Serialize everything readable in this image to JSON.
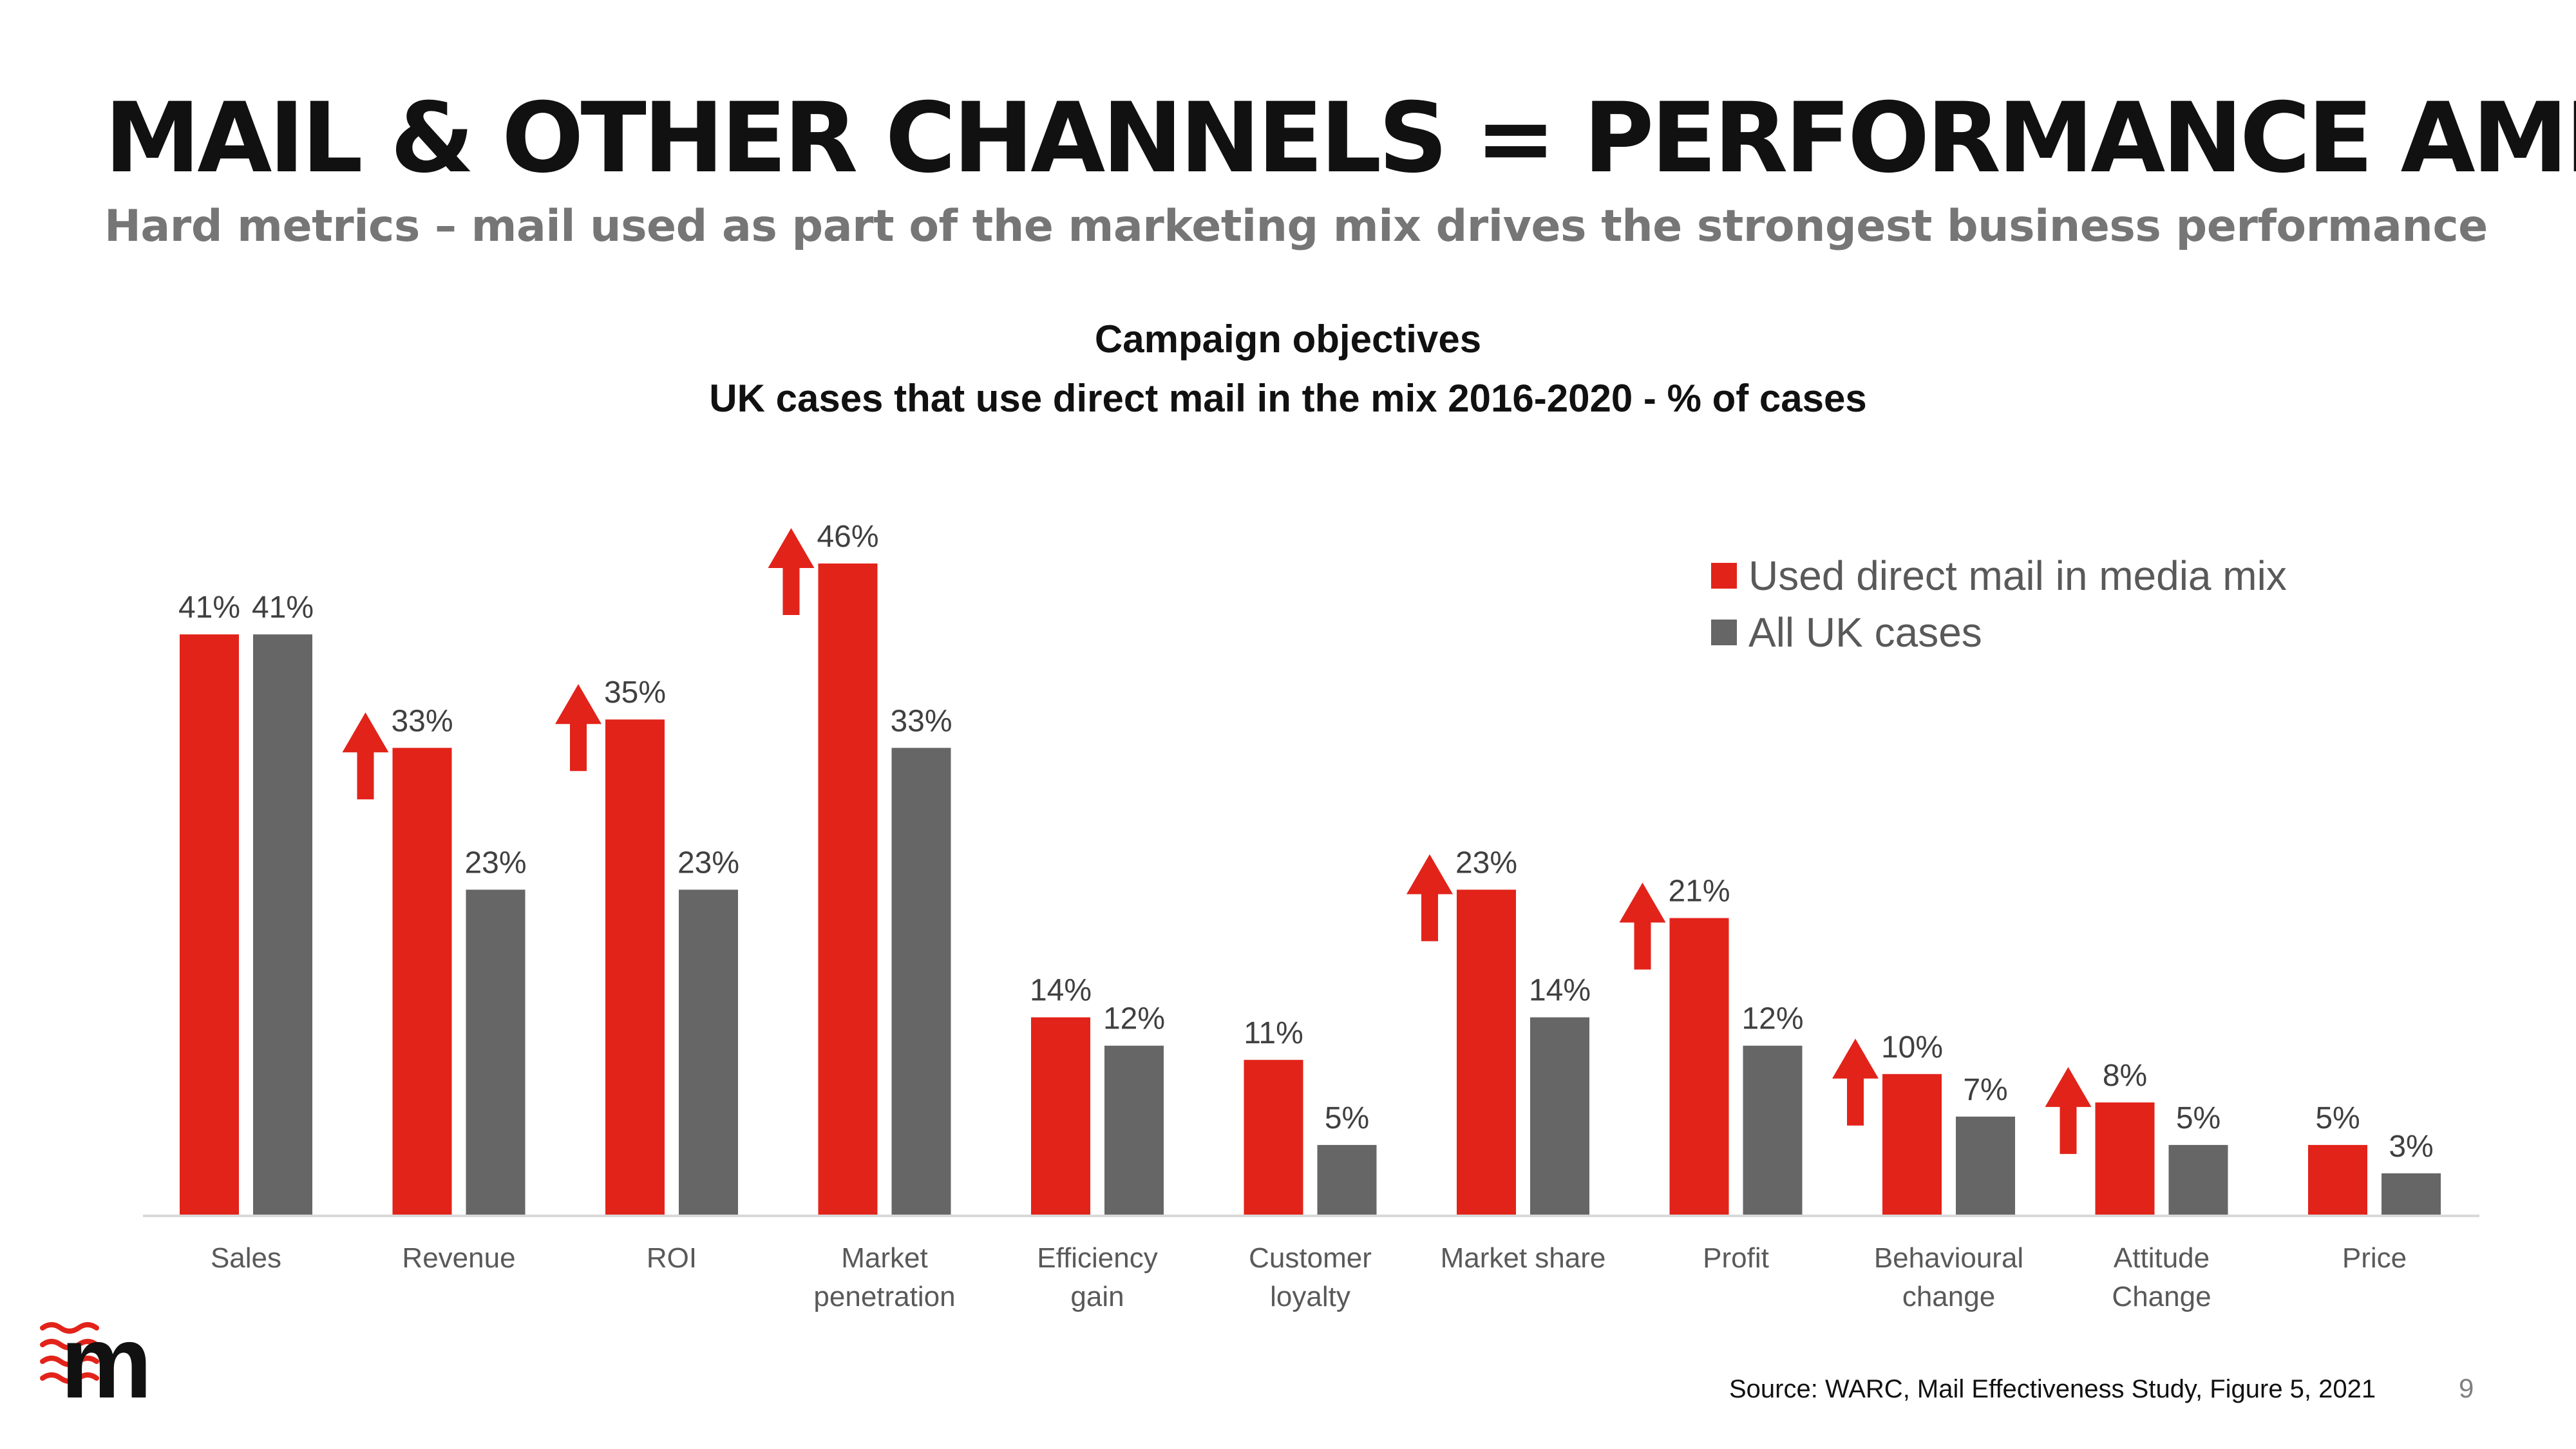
{
  "slide": {
    "title": "MAIL & OTHER CHANNELS = PERFORMANCE AMPLIFIER",
    "subtitle": "Hard metrics – mail used as part of the marketing mix drives the strongest business performance",
    "source": "Source: WARC, Mail Effectiveness Study, Figure 5, 2021",
    "page_number": "9",
    "logo_text": "m"
  },
  "colors": {
    "mail": "#E2231A",
    "all": "#666666",
    "axis": "#D9D9D9",
    "label": "#404040",
    "arrow": "#E2231A"
  },
  "chart_data": {
    "type": "bar",
    "title": "Campaign objectives",
    "subtitle": "UK cases that use direct mail in the mix 2016-2020 - % of cases",
    "categories": [
      [
        "Sales"
      ],
      [
        "Revenue"
      ],
      [
        "ROI"
      ],
      [
        "Market",
        "penetration"
      ],
      [
        "Efficiency",
        "gain"
      ],
      [
        "Customer",
        "loyalty"
      ],
      [
        "Market share"
      ],
      [
        "Profit"
      ],
      [
        "Behavioural",
        "change"
      ],
      [
        "Attitude",
        "Change"
      ],
      [
        "Price"
      ]
    ],
    "series": [
      {
        "name": "Used direct mail in media mix",
        "color": "#E2231A",
        "values": [
          41,
          33,
          35,
          46,
          14,
          11,
          23,
          21,
          10,
          8,
          5
        ],
        "labels": [
          "41%",
          "33%",
          "35%",
          "46%",
          "14%",
          "11%",
          "23%",
          "21%",
          "10%",
          "8%",
          "5%"
        ]
      },
      {
        "name": "All UK cases",
        "color": "#666666",
        "values": [
          41,
          23,
          23,
          33,
          12,
          5,
          14,
          12,
          7,
          5,
          3
        ],
        "labels": [
          "41%",
          "23%",
          "23%",
          "33%",
          "12%",
          "5%",
          "14%",
          "12%",
          "7%",
          "5%",
          "3%"
        ]
      }
    ],
    "uplift_arrows": [
      false,
      true,
      true,
      true,
      false,
      false,
      true,
      true,
      true,
      true,
      false
    ],
    "ylim": [
      0,
      46
    ],
    "y_axis_visible": false,
    "grid": false,
    "legend_position": "top-right",
    "xlabel": "",
    "ylabel": ""
  }
}
